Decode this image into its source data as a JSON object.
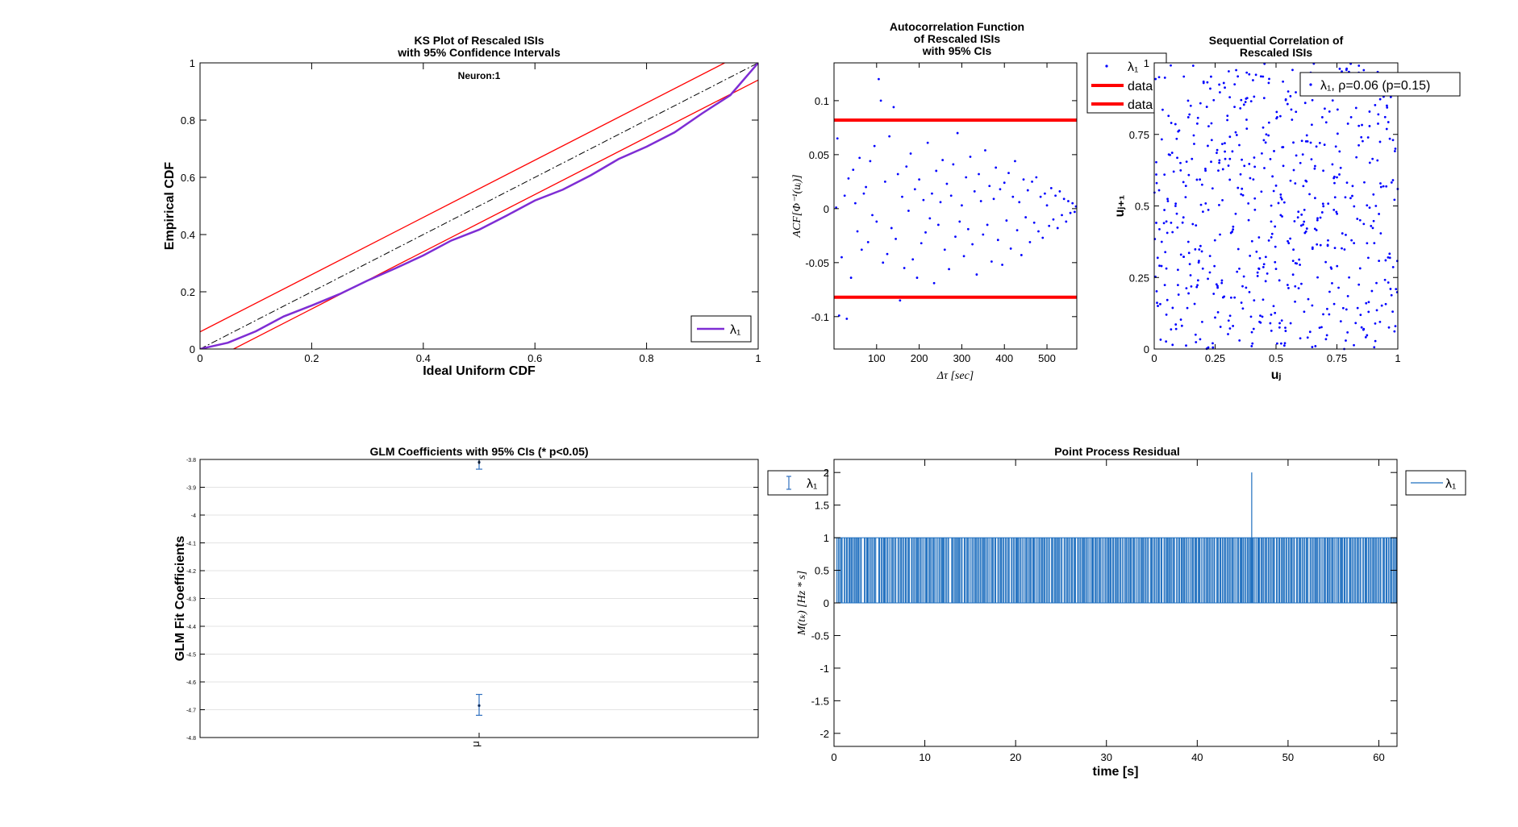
{
  "chart_data": [
    {
      "type": "line",
      "title": "KS Plot of Rescaled ISIs\nwith 95% Confidence Intervals",
      "subtitle": "Neuron:1",
      "xlabel": "Ideal Uniform CDF",
      "ylabel": "Empirical CDF",
      "xlim": [
        0,
        1
      ],
      "ylim": [
        0,
        1
      ],
      "xticks": [
        "0",
        "0.2",
        "0.4",
        "0.6",
        "0.8",
        "1"
      ],
      "yticks": [
        "0",
        "0.2",
        "0.4",
        "0.6",
        "0.8",
        "1"
      ],
      "legend": {
        "label": "λ₁",
        "placement": "bottom-right",
        "color": "#7e2dd4"
      },
      "series": [
        {
          "name": "λ₁",
          "color": "#7e2dd4",
          "x": [
            0,
            0.05,
            0.1,
            0.15,
            0.2,
            0.25,
            0.3,
            0.35,
            0.4,
            0.45,
            0.5,
            0.55,
            0.6,
            0.65,
            0.7,
            0.75,
            0.8,
            0.85,
            0.9,
            0.95,
            1.0
          ],
          "y": [
            0,
            0.025,
            0.065,
            0.11,
            0.155,
            0.195,
            0.235,
            0.285,
            0.33,
            0.375,
            0.42,
            0.47,
            0.515,
            0.56,
            0.61,
            0.66,
            0.71,
            0.76,
            0.82,
            0.89,
            1.0
          ]
        }
      ],
      "reference_lines": [
        {
          "kind": "diagonal",
          "style": "dash-dot",
          "color": "#000000",
          "x": [
            0,
            1
          ],
          "y": [
            0,
            1
          ]
        },
        {
          "kind": "upper-ci",
          "color": "#ff0000",
          "x": [
            0,
            1
          ],
          "y": [
            0.06,
            1.06
          ]
        },
        {
          "kind": "lower-ci",
          "color": "#ff0000",
          "x": [
            0,
            1
          ],
          "y": [
            -0.06,
            0.94
          ]
        }
      ],
      "grid": false
    },
    {
      "type": "scatter",
      "title": "Autocorrelation Function\nof Rescaled ISIs\nwith 95% CIs",
      "xlabel": "Δτ [sec]",
      "ylabel": "ACF[Φ⁻¹(uᵢ)]",
      "xlim": [
        0,
        570
      ],
      "ylim": [
        -0.13,
        0.135
      ],
      "xticks": [
        "100",
        "200",
        "300",
        "400",
        "500"
      ],
      "yticks": [
        "-0.1",
        "-0.05",
        "0",
        "0.05",
        "0.1"
      ],
      "confidence_bounds": [
        0.082,
        -0.082
      ],
      "series_color": "#0000ff",
      "bound_color": "#ff0000",
      "legend": {
        "entries": [
          "λ₁",
          "data",
          "data"
        ],
        "placement": "outside-right"
      },
      "points": [
        [
          5,
          0.001
        ],
        [
          8,
          0.065
        ],
        [
          12,
          -0.099
        ],
        [
          18,
          -0.045
        ],
        [
          25,
          0.012
        ],
        [
          30,
          -0.102
        ],
        [
          34,
          0.028
        ],
        [
          40,
          -0.064
        ],
        [
          45,
          0.036
        ],
        [
          50,
          0.005
        ],
        [
          55,
          -0.021
        ],
        [
          60,
          0.047
        ],
        [
          65,
          -0.038
        ],
        [
          70,
          0.014
        ],
        [
          75,
          0.02
        ],
        [
          80,
          -0.031
        ],
        [
          85,
          0.044
        ],
        [
          90,
          -0.006
        ],
        [
          95,
          0.058
        ],
        [
          100,
          -0.012
        ],
        [
          105,
          0.12
        ],
        [
          110,
          0.1
        ],
        [
          115,
          -0.05
        ],
        [
          120,
          0.025
        ],
        [
          125,
          -0.042
        ],
        [
          130,
          0.067
        ],
        [
          135,
          -0.018
        ],
        [
          140,
          0.094
        ],
        [
          145,
          -0.028
        ],
        [
          150,
          0.032
        ],
        [
          155,
          -0.085
        ],
        [
          160,
          0.011
        ],
        [
          165,
          -0.055
        ],
        [
          170,
          0.039
        ],
        [
          175,
          -0.002
        ],
        [
          180,
          0.051
        ],
        [
          185,
          -0.047
        ],
        [
          190,
          0.018
        ],
        [
          195,
          -0.064
        ],
        [
          200,
          0.027
        ],
        [
          205,
          -0.032
        ],
        [
          210,
          0.008
        ],
        [
          215,
          -0.022
        ],
        [
          220,
          0.061
        ],
        [
          225,
          -0.009
        ],
        [
          230,
          0.014
        ],
        [
          235,
          -0.069
        ],
        [
          240,
          0.035
        ],
        [
          245,
          -0.015
        ],
        [
          250,
          0.006
        ],
        [
          255,
          0.045
        ],
        [
          260,
          -0.038
        ],
        [
          265,
          0.023
        ],
        [
          270,
          -0.056
        ],
        [
          275,
          0.012
        ],
        [
          280,
          0.041
        ],
        [
          285,
          -0.026
        ],
        [
          290,
          0.07
        ],
        [
          295,
          -0.012
        ],
        [
          300,
          0.003
        ],
        [
          305,
          -0.044
        ],
        [
          310,
          0.029
        ],
        [
          315,
          -0.019
        ],
        [
          320,
          0.048
        ],
        [
          325,
          -0.033
        ],
        [
          330,
          0.016
        ],
        [
          335,
          -0.061
        ],
        [
          340,
          0.032
        ],
        [
          345,
          0.007
        ],
        [
          350,
          -0.024
        ],
        [
          355,
          0.054
        ],
        [
          360,
          -0.015
        ],
        [
          365,
          0.021
        ],
        [
          370,
          -0.049
        ],
        [
          375,
          0.009
        ],
        [
          380,
          0.038
        ],
        [
          385,
          -0.029
        ],
        [
          390,
          0.018
        ],
        [
          395,
          -0.052
        ],
        [
          400,
          0.024
        ],
        [
          405,
          -0.011
        ],
        [
          410,
          0.033
        ],
        [
          415,
          -0.037
        ],
        [
          420,
          0.011
        ],
        [
          425,
          0.044
        ],
        [
          430,
          -0.02
        ],
        [
          435,
          0.006
        ],
        [
          440,
          -0.043
        ],
        [
          445,
          0.027
        ],
        [
          450,
          -0.008
        ],
        [
          455,
          0.017
        ],
        [
          460,
          -0.031
        ],
        [
          465,
          0.025
        ],
        [
          470,
          -0.013
        ],
        [
          475,
          0.029
        ],
        [
          480,
          -0.021
        ],
        [
          485,
          0.011
        ],
        [
          490,
          -0.027
        ],
        [
          495,
          0.014
        ],
        [
          500,
          0.003
        ],
        [
          505,
          -0.016
        ],
        [
          510,
          0.019
        ],
        [
          515,
          -0.01
        ],
        [
          520,
          0.012
        ],
        [
          525,
          -0.018
        ],
        [
          530,
          0.016
        ],
        [
          535,
          -0.006
        ],
        [
          540,
          0.009
        ],
        [
          545,
          -0.012
        ],
        [
          550,
          0.007
        ],
        [
          555,
          -0.004
        ],
        [
          560,
          0.005
        ],
        [
          565,
          -0.003
        ],
        [
          568,
          0.002
        ]
      ],
      "grid": false
    },
    {
      "type": "scatter",
      "title": "Sequential Correlation of\nRescaled ISIs",
      "xlabel": "uⱼ",
      "ylabel": "uⱼ₊₁",
      "xlim": [
        0,
        1
      ],
      "ylim": [
        0,
        1
      ],
      "xticks": [
        "0",
        "0.25",
        "0.5",
        "0.75",
        "1"
      ],
      "yticks": [
        "0",
        "0.25",
        "0.5",
        "0.75",
        "1"
      ],
      "series_color": "#0000ff",
      "legend": {
        "label": "λ₁, ρ=0.06 (p=0.15)",
        "placement": "top-right"
      },
      "points": [
        [
          0.02,
          0.95
        ],
        [
          0.05,
          0.12
        ],
        [
          0.08,
          0.62
        ],
        [
          0.11,
          0.33
        ],
        [
          0.14,
          0.81
        ],
        [
          0.17,
          0.05
        ],
        [
          0.2,
          0.48
        ],
        [
          0.23,
          0.91
        ],
        [
          0.26,
          0.22
        ],
        [
          0.29,
          0.69
        ],
        [
          0.32,
          0.41
        ],
        [
          0.35,
          0.03
        ],
        [
          0.38,
          0.77
        ],
        [
          0.41,
          0.17
        ],
        [
          0.44,
          0.55
        ],
        [
          0.47,
          0.93
        ],
        [
          0.5,
          0.28
        ],
        [
          0.53,
          0.64
        ],
        [
          0.56,
          0.09
        ],
        [
          0.59,
          0.46
        ],
        [
          0.62,
          0.86
        ],
        [
          0.65,
          0.35
        ],
        [
          0.68,
          0.72
        ],
        [
          0.71,
          0.14
        ],
        [
          0.74,
          0.58
        ],
        [
          0.77,
          0.97
        ],
        [
          0.8,
          0.25
        ],
        [
          0.83,
          0.67
        ],
        [
          0.86,
          0.07
        ],
        [
          0.89,
          0.43
        ],
        [
          0.92,
          0.82
        ],
        [
          0.95,
          0.31
        ],
        [
          0.98,
          0.59
        ],
        [
          0.04,
          0.44
        ],
        [
          0.07,
          0.79
        ],
        [
          0.1,
          0.19
        ],
        [
          0.13,
          0.57
        ],
        [
          0.16,
          0.99
        ],
        [
          0.19,
          0.36
        ],
        [
          0.22,
          0.71
        ],
        [
          0.25,
          0.11
        ],
        [
          0.28,
          0.52
        ],
        [
          0.31,
          0.88
        ],
        [
          0.34,
          0.27
        ],
        [
          0.37,
          0.64
        ],
        [
          0.4,
          0.01
        ],
        [
          0.43,
          0.39
        ],
        [
          0.46,
          0.75
        ],
        [
          0.49,
          0.15
        ],
        [
          0.52,
          0.53
        ],
        [
          0.55,
          0.9
        ],
        [
          0.58,
          0.3
        ],
        [
          0.61,
          0.68
        ],
        [
          0.64,
          0.06
        ],
        [
          0.67,
          0.45
        ],
        [
          0.7,
          0.84
        ],
        [
          0.73,
          0.23
        ],
        [
          0.76,
          0.61
        ],
        [
          0.79,
          0.98
        ],
        [
          0.82,
          0.37
        ],
        [
          0.85,
          0.74
        ],
        [
          0.88,
          0.13
        ],
        [
          0.91,
          0.5
        ],
        [
          0.94,
          0.89
        ],
        [
          0.97,
          0.21
        ],
        [
          0.03,
          0.29
        ],
        [
          0.06,
          0.68
        ],
        [
          0.09,
          0.07
        ],
        [
          0.12,
          0.46
        ],
        [
          0.15,
          0.85
        ],
        [
          0.18,
          0.24
        ],
        [
          0.21,
          0.63
        ],
        [
          0.24,
          0.02
        ],
        [
          0.27,
          0.4
        ],
        [
          0.3,
          0.8
        ],
        [
          0.33,
          0.18
        ],
        [
          0.36,
          0.56
        ],
        [
          0.39,
          0.96
        ],
        [
          0.42,
          0.34
        ],
        [
          0.45,
          0.73
        ],
        [
          0.48,
          0.12
        ],
        [
          0.51,
          0.51
        ],
        [
          0.54,
          0.87
        ],
        [
          0.57,
          0.26
        ],
        [
          0.6,
          0.65
        ],
        [
          0.63,
          0.04
        ],
        [
          0.66,
          0.42
        ],
        [
          0.69,
          0.81
        ],
        [
          0.72,
          0.2
        ],
        [
          0.75,
          0.6
        ],
        [
          0.78,
          0.0
        ],
        [
          0.81,
          0.38
        ],
        [
          0.84,
          0.78
        ],
        [
          0.87,
          0.16
        ],
        [
          0.9,
          0.54
        ],
        [
          0.93,
          0.94
        ],
        [
          0.96,
          0.32
        ],
        [
          0.99,
          0.7
        ],
        [
          0.01,
          0.58
        ],
        [
          0.99,
          0.08
        ]
      ],
      "grid": false
    },
    {
      "type": "scatter",
      "title": "GLM Coefficients with 95% CIs (* p<0.05)",
      "xlabel": "",
      "ylabel": "GLM Fit Coefficients",
      "categories": [
        "μ"
      ],
      "ylim": [
        -4.8,
        -3.8
      ],
      "yticks": [
        "-3.8",
        "-3.9",
        "-4",
        "-4.1",
        "-4.2",
        "-4.3",
        "-4.4",
        "-4.5",
        "-4.6",
        "-4.7",
        "-4.8"
      ],
      "legend": {
        "label": "λ₁",
        "placement": "outside-right"
      },
      "series": [
        {
          "name": "λ₁",
          "color": "#2f6fbf",
          "points": [
            {
              "category": "μ",
              "value": -4.685,
              "ci": [
                -4.72,
                -4.645
              ]
            },
            {
              "category": "μ",
              "value": -3.81,
              "ci": [
                -3.835,
                -3.8
              ]
            }
          ]
        }
      ],
      "grid": true
    },
    {
      "type": "line",
      "title": "Point Process Residual",
      "xlabel": "time [s]",
      "ylabel": "M(tₖ) [Hz * s]",
      "xlim": [
        0,
        62
      ],
      "ylim": [
        -2.2,
        2.2
      ],
      "xticks": [
        "0",
        "10",
        "20",
        "30",
        "40",
        "50",
        "60"
      ],
      "yticks": [
        "-2",
        "-1.5",
        "-1",
        "-0.5",
        "0",
        "0.5",
        "1",
        "1.5",
        "2"
      ],
      "legend": {
        "label": "λ₁",
        "placement": "outside-right"
      },
      "series_color": "#1f6fbf",
      "baseline": 0,
      "spike_level": 1,
      "double_spike": {
        "x": 46.0,
        "y": 2
      },
      "spike_times": [
        0.3,
        1.1,
        1.8,
        2.4,
        3.3,
        4.0,
        4.9,
        5.4,
        6.2,
        7.0,
        7.7,
        8.5,
        9.1,
        9.9,
        10.6,
        11.4,
        12.0,
        12.9,
        13.5,
        14.3,
        15.1,
        15.8,
        16.4,
        17.2,
        18.0,
        18.7,
        19.5,
        20.1,
        20.9,
        21.6,
        22.4,
        23.1,
        23.9,
        24.5,
        25.3,
        26.0,
        26.8,
        27.4,
        28.2,
        28.9,
        29.7,
        30.4,
        31.1,
        31.9,
        32.6,
        33.4,
        34.0,
        34.8,
        35.5,
        36.3,
        36.9,
        37.7,
        38.4,
        39.2,
        39.8,
        40.6,
        41.3,
        42.1,
        42.8,
        43.5,
        44.3,
        45.0,
        45.7,
        46.5,
        47.2,
        47.9,
        48.7,
        49.4,
        50.1,
        50.9,
        51.6,
        52.4,
        53.0,
        53.8,
        54.5,
        55.3,
        55.9,
        56.7,
        57.4,
        58.2,
        58.9,
        59.6,
        60.4,
        61.1,
        61.8
      ],
      "grid": false
    }
  ]
}
